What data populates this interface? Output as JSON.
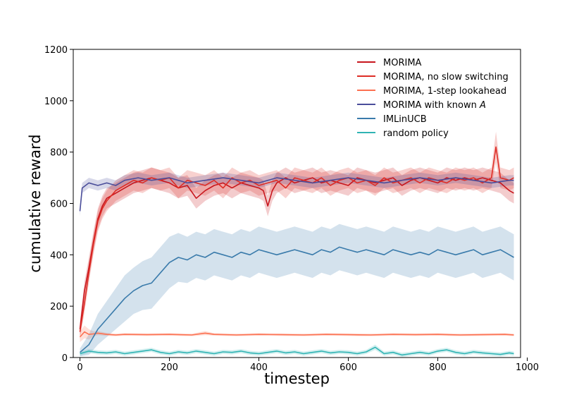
{
  "chart_data": {
    "type": "line",
    "title": "",
    "xlabel": "timestep",
    "ylabel": "cumulative reward",
    "xlim": [
      -15,
      985
    ],
    "ylim": [
      0,
      1200
    ],
    "xticks": [
      0,
      200,
      400,
      600,
      800,
      1000
    ],
    "yticks": [
      0,
      200,
      400,
      600,
      800,
      1000,
      1200
    ],
    "grid": false,
    "legend_position": "top-right",
    "series": [
      {
        "name": "MORIMA",
        "color": "#c8161d",
        "x": [
          0,
          10,
          20,
          30,
          40,
          50,
          60,
          80,
          100,
          120,
          140,
          160,
          180,
          200,
          220,
          240,
          260,
          280,
          300,
          320,
          340,
          360,
          380,
          400,
          410,
          420,
          430,
          440,
          460,
          480,
          500,
          520,
          540,
          560,
          580,
          600,
          620,
          640,
          660,
          680,
          700,
          720,
          740,
          760,
          780,
          800,
          820,
          840,
          860,
          880,
          900,
          920,
          940,
          960,
          970
        ],
        "values": [
          110,
          260,
          350,
          450,
          540,
          590,
          620,
          640,
          660,
          680,
          690,
          700,
          690,
          680,
          660,
          670,
          620,
          650,
          670,
          680,
          660,
          680,
          670,
          660,
          650,
          590,
          650,
          680,
          700,
          680,
          690,
          700,
          680,
          690,
          680,
          670,
          700,
          690,
          680,
          690,
          700,
          670,
          690,
          700,
          690,
          680,
          700,
          690,
          700,
          690,
          700,
          690,
          680,
          650,
          640
        ],
        "band": [
          30,
          35,
          40,
          40,
          40,
          40,
          40,
          40,
          40,
          40,
          40,
          40,
          40,
          40,
          40,
          40,
          40,
          40,
          40,
          40,
          40,
          40,
          40,
          40,
          40,
          40,
          40,
          40,
          40,
          40,
          40,
          40,
          40,
          40,
          40,
          40,
          40,
          40,
          40,
          40,
          40,
          40,
          40,
          40,
          40,
          40,
          40,
          40,
          40,
          40,
          40,
          40,
          40,
          40,
          40
        ]
      },
      {
        "name": "MORIMA, no slow switching",
        "color": "#de2d26",
        "x": [
          0,
          10,
          20,
          30,
          40,
          50,
          60,
          80,
          100,
          120,
          140,
          160,
          180,
          200,
          220,
          240,
          260,
          280,
          300,
          320,
          340,
          360,
          380,
          400,
          420,
          440,
          460,
          480,
          500,
          520,
          540,
          560,
          580,
          600,
          620,
          640,
          660,
          680,
          700,
          720,
          740,
          760,
          780,
          800,
          820,
          840,
          860,
          880,
          900,
          920,
          930,
          940,
          960,
          970
        ],
        "values": [
          100,
          210,
          330,
          440,
          530,
          580,
          610,
          650,
          670,
          690,
          680,
          700,
          690,
          700,
          660,
          690,
          680,
          670,
          690,
          660,
          700,
          680,
          690,
          670,
          680,
          690,
          660,
          700,
          690,
          680,
          700,
          670,
          690,
          700,
          680,
          690,
          670,
          700,
          680,
          690,
          700,
          680,
          700,
          690,
          680,
          700,
          690,
          700,
          680,
          700,
          820,
          700,
          690,
          700
        ],
        "band": [
          30,
          35,
          40,
          40,
          40,
          40,
          40,
          40,
          40,
          40,
          40,
          40,
          40,
          40,
          40,
          40,
          40,
          40,
          40,
          40,
          40,
          40,
          40,
          40,
          40,
          40,
          40,
          40,
          40,
          40,
          40,
          40,
          40,
          40,
          40,
          40,
          40,
          40,
          40,
          40,
          40,
          40,
          40,
          40,
          40,
          40,
          40,
          40,
          40,
          40,
          60,
          40,
          40,
          40
        ]
      },
      {
        "name": "MORIMA, 1-step lookahead",
        "color": "#fc7050",
        "x": [
          0,
          10,
          20,
          30,
          40,
          60,
          80,
          100,
          150,
          200,
          250,
          280,
          300,
          350,
          400,
          450,
          500,
          550,
          600,
          650,
          700,
          750,
          800,
          850,
          900,
          950,
          970
        ],
        "values": [
          80,
          100,
          90,
          92,
          95,
          90,
          88,
          90,
          89,
          90,
          88,
          95,
          90,
          88,
          90,
          89,
          88,
          90,
          89,
          88,
          90,
          89,
          90,
          88,
          89,
          90,
          88
        ],
        "band": [
          20,
          25,
          20,
          10,
          8,
          6,
          5,
          5,
          5,
          5,
          5,
          8,
          5,
          5,
          5,
          5,
          5,
          5,
          5,
          5,
          5,
          5,
          5,
          5,
          5,
          5,
          5
        ]
      },
      {
        "name": "MORIMA with known A",
        "color": "#4a4d9a",
        "x": [
          0,
          5,
          20,
          40,
          60,
          80,
          100,
          130,
          160,
          200,
          240,
          280,
          320,
          360,
          400,
          440,
          480,
          520,
          560,
          600,
          640,
          680,
          720,
          760,
          800,
          840,
          880,
          920,
          960,
          970
        ],
        "values": [
          570,
          660,
          680,
          670,
          680,
          670,
          690,
          700,
          690,
          700,
          680,
          690,
          700,
          690,
          680,
          700,
          690,
          680,
          690,
          700,
          690,
          680,
          690,
          700,
          690,
          700,
          690,
          680,
          690,
          690
        ],
        "band": [
          20,
          20,
          20,
          20,
          20,
          20,
          20,
          20,
          20,
          20,
          20,
          20,
          20,
          20,
          20,
          20,
          20,
          20,
          20,
          20,
          20,
          20,
          20,
          20,
          20,
          20,
          20,
          20,
          20,
          20
        ]
      },
      {
        "name": "IMLinUCB",
        "color": "#3a7bab",
        "x": [
          0,
          20,
          40,
          60,
          80,
          100,
          120,
          140,
          160,
          180,
          200,
          220,
          240,
          260,
          280,
          300,
          320,
          340,
          360,
          380,
          400,
          420,
          440,
          460,
          480,
          500,
          520,
          540,
          560,
          580,
          600,
          620,
          640,
          660,
          680,
          700,
          720,
          740,
          760,
          780,
          800,
          820,
          840,
          860,
          880,
          900,
          920,
          940,
          960,
          970
        ],
        "values": [
          20,
          50,
          110,
          150,
          190,
          230,
          260,
          280,
          290,
          330,
          370,
          390,
          380,
          400,
          390,
          410,
          400,
          390,
          410,
          400,
          420,
          410,
          400,
          410,
          420,
          410,
          400,
          420,
          410,
          430,
          420,
          410,
          420,
          410,
          400,
          420,
          410,
          400,
          410,
          400,
          420,
          410,
          400,
          410,
          420,
          400,
          410,
          420,
          400,
          390
        ],
        "band": [
          15,
          40,
          60,
          70,
          80,
          90,
          90,
          95,
          100,
          100,
          100,
          95,
          90,
          90,
          90,
          90,
          90,
          90,
          90,
          90,
          90,
          90,
          90,
          90,
          90,
          90,
          90,
          90,
          90,
          90,
          90,
          90,
          90,
          90,
          90,
          90,
          90,
          90,
          90,
          90,
          90,
          90,
          90,
          90,
          90,
          90,
          90,
          90,
          90,
          90
        ]
      },
      {
        "name": "random policy",
        "color": "#30b4b4",
        "x": [
          0,
          20,
          40,
          60,
          80,
          100,
          120,
          140,
          160,
          180,
          200,
          220,
          240,
          260,
          280,
          300,
          320,
          340,
          360,
          380,
          400,
          420,
          440,
          460,
          480,
          500,
          520,
          540,
          560,
          580,
          600,
          620,
          640,
          660,
          680,
          700,
          720,
          740,
          760,
          780,
          800,
          820,
          840,
          860,
          880,
          900,
          920,
          940,
          960,
          970
        ],
        "values": [
          15,
          25,
          20,
          18,
          22,
          15,
          20,
          25,
          30,
          20,
          15,
          22,
          18,
          25,
          20,
          15,
          22,
          20,
          25,
          18,
          15,
          20,
          25,
          18,
          22,
          15,
          20,
          25,
          18,
          22,
          20,
          15,
          22,
          40,
          15,
          20,
          10,
          15,
          20,
          15,
          25,
          30,
          20,
          15,
          22,
          18,
          15,
          12,
          18,
          15
        ],
        "band": [
          8,
          8,
          8,
          8,
          8,
          8,
          8,
          8,
          8,
          8,
          8,
          8,
          8,
          8,
          8,
          8,
          8,
          8,
          8,
          8,
          8,
          8,
          8,
          8,
          8,
          8,
          8,
          8,
          8,
          8,
          8,
          8,
          8,
          10,
          8,
          8,
          8,
          8,
          8,
          8,
          8,
          8,
          8,
          8,
          8,
          8,
          8,
          8,
          8,
          8
        ]
      }
    ]
  }
}
